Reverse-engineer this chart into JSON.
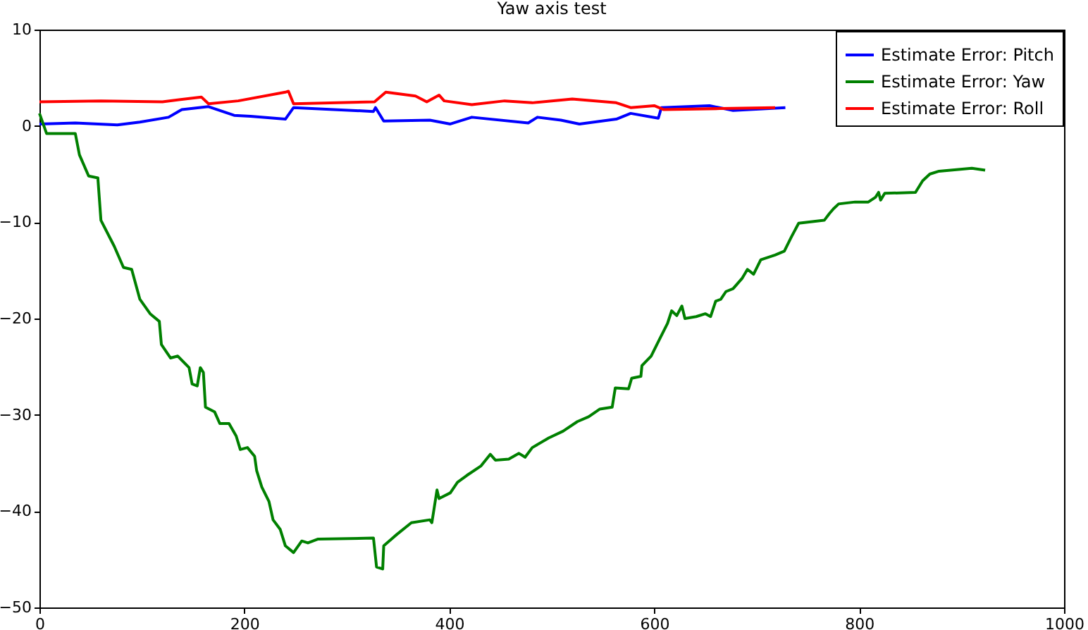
{
  "chart_data": {
    "type": "line",
    "title": "Yaw axis test",
    "xlim": [
      0,
      1000
    ],
    "ylim": [
      -50,
      10
    ],
    "xticks": [
      0,
      200,
      400,
      600,
      800,
      1000
    ],
    "yticks": [
      -50,
      -40,
      -30,
      -20,
      -10,
      0,
      10
    ],
    "grid": false,
    "legend": "top right",
    "marker": "none",
    "line_style": "solid",
    "series": [
      {
        "name": "Estimate Error: Pitch",
        "color": "#0000ff",
        "x": [
          0,
          35,
          76,
          98,
          126,
          139,
          165,
          190,
          206,
          240,
          248,
          326,
          328,
          336,
          381,
          401,
          422,
          477,
          486,
          509,
          527,
          563,
          577,
          604,
          607,
          654,
          677,
          728
        ],
        "values": [
          0.2,
          0.3,
          0.1,
          0.4,
          0.9,
          1.7,
          2.0,
          1.1,
          1.0,
          0.7,
          1.9,
          1.5,
          1.9,
          0.5,
          0.6,
          0.2,
          0.9,
          0.3,
          0.9,
          0.6,
          0.2,
          0.7,
          1.3,
          0.8,
          1.9,
          2.1,
          1.6,
          1.9
        ]
      },
      {
        "name": "Estimate Error: Yaw",
        "color": "#008000",
        "x": [
          0,
          7,
          35,
          39,
          48,
          57,
          60,
          73,
          82,
          90,
          98,
          108,
          117,
          119,
          128,
          135,
          146,
          149,
          154,
          157,
          160,
          162,
          171,
          176,
          185,
          192,
          196,
          203,
          210,
          212,
          217,
          224,
          228,
          235,
          240,
          248,
          256,
          262,
          272,
          326,
          329,
          335,
          336,
          349,
          363,
          381,
          383,
          388,
          390,
          401,
          408,
          417,
          431,
          440,
          445,
          458,
          468,
          474,
          481,
          497,
          511,
          525,
          536,
          547,
          559,
          562,
          575,
          578,
          587,
          588,
          597,
          604,
          613,
          617,
          622,
          627,
          630,
          641,
          650,
          655,
          660,
          665,
          670,
          677,
          686,
          691,
          697,
          704,
          718,
          727,
          734,
          741,
          766,
          771,
          775,
          780,
          796,
          809,
          816,
          819,
          821,
          825,
          855,
          862,
          869,
          878,
          910,
          923
        ],
        "values": [
          1.3,
          -0.8,
          -0.8,
          -3.0,
          -5.2,
          -5.4,
          -9.8,
          -12.5,
          -14.7,
          -14.9,
          -18.0,
          -19.5,
          -20.3,
          -22.7,
          -24.1,
          -23.9,
          -25.1,
          -26.8,
          -27.0,
          -25.1,
          -25.6,
          -29.2,
          -29.7,
          -30.9,
          -30.9,
          -32.2,
          -33.6,
          -33.4,
          -34.3,
          -35.8,
          -37.5,
          -39.0,
          -40.9,
          -41.9,
          -43.6,
          -44.3,
          -43.1,
          -43.3,
          -42.9,
          -42.8,
          -45.8,
          -46.0,
          -43.6,
          -42.4,
          -41.2,
          -40.9,
          -41.2,
          -37.8,
          -38.7,
          -38.1,
          -37.0,
          -36.3,
          -35.3,
          -34.1,
          -34.7,
          -34.6,
          -34.0,
          -34.4,
          -33.4,
          -32.4,
          -31.7,
          -30.7,
          -30.2,
          -29.4,
          -29.2,
          -27.2,
          -27.3,
          -26.2,
          -26.0,
          -24.9,
          -23.9,
          -22.4,
          -20.5,
          -19.2,
          -19.7,
          -18.7,
          -20.0,
          -19.8,
          -19.5,
          -19.8,
          -18.2,
          -18.0,
          -17.2,
          -16.9,
          -15.8,
          -14.9,
          -15.4,
          -13.9,
          -13.4,
          -13.0,
          -11.5,
          -10.1,
          -9.8,
          -9.1,
          -8.6,
          -8.1,
          -7.9,
          -7.9,
          -7.4,
          -6.9,
          -7.7,
          -7.0,
          -6.9,
          -5.7,
          -5.0,
          -4.7,
          -4.4,
          -4.6
        ]
      },
      {
        "name": "Estimate Error: Roll",
        "color": "#ff0000",
        "x": [
          0,
          60,
          120,
          158,
          165,
          194,
          240,
          243,
          248,
          327,
          338,
          367,
          378,
          390,
          395,
          422,
          454,
          481,
          520,
          563,
          577,
          600,
          609,
          664,
          718
        ],
        "values": [
          2.5,
          2.6,
          2.5,
          3.0,
          2.3,
          2.6,
          3.5,
          3.6,
          2.3,
          2.5,
          3.5,
          3.1,
          2.5,
          3.2,
          2.6,
          2.2,
          2.6,
          2.4,
          2.8,
          2.4,
          1.9,
          2.1,
          1.7,
          1.8,
          1.9
        ]
      }
    ]
  }
}
